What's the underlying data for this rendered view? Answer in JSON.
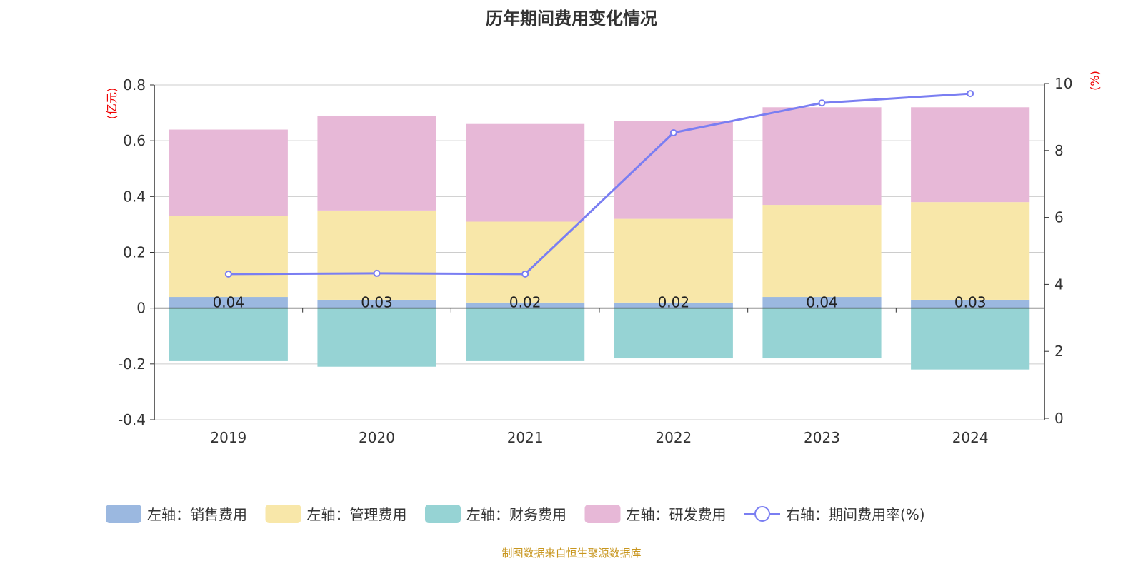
{
  "chart_data": {
    "type": "bar",
    "title": "历年期间费用变化情况",
    "categories": [
      "2019",
      "2020",
      "2021",
      "2022",
      "2023",
      "2024"
    ],
    "left_axis": {
      "label": "(亿元)",
      "ylim": [
        -0.4,
        0.8
      ],
      "ticks": [
        "-0.4",
        "-0.2",
        "0",
        "0.2",
        "0.4",
        "0.6",
        "0.8"
      ],
      "tick_values": [
        -0.4,
        -0.2,
        0,
        0.2,
        0.4,
        0.6,
        0.8
      ]
    },
    "right_axis": {
      "label": "(%)",
      "ylim": [
        0,
        10
      ],
      "ticks": [
        "0",
        "2",
        "4",
        "6",
        "8",
        "10"
      ],
      "tick_values": [
        0,
        2,
        4,
        6,
        8,
        10
      ]
    },
    "series": [
      {
        "name": "左轴：销售费用",
        "type": "bar",
        "color": "#9bb8e0",
        "values": [
          0.04,
          0.03,
          0.02,
          0.02,
          0.04,
          0.03
        ],
        "labels": [
          "0.04",
          "0.03",
          "0.02",
          "0.02",
          "0.04",
          "0.03"
        ]
      },
      {
        "name": "左轴：管理费用",
        "type": "bar",
        "color": "#f8e7a9",
        "values": [
          0.29,
          0.32,
          0.29,
          0.3,
          0.33,
          0.35
        ]
      },
      {
        "name": "左轴：财务费用",
        "type": "bar",
        "color": "#96d3d4",
        "values": [
          -0.19,
          -0.21,
          -0.19,
          -0.18,
          -0.18,
          -0.22
        ]
      },
      {
        "name": "左轴：研发费用",
        "type": "bar",
        "color": "#e7b8d7",
        "values": [
          0.31,
          0.34,
          0.35,
          0.35,
          0.35,
          0.34
        ]
      },
      {
        "name": "右轴：期间费用率(%)",
        "type": "line",
        "color": "#7a7ef2",
        "values": [
          4.31,
          4.33,
          4.31,
          8.53,
          9.42,
          9.7
        ]
      }
    ],
    "legend_position": "bottom",
    "grid": true
  },
  "source": "制图数据来自恒生聚源数据库"
}
